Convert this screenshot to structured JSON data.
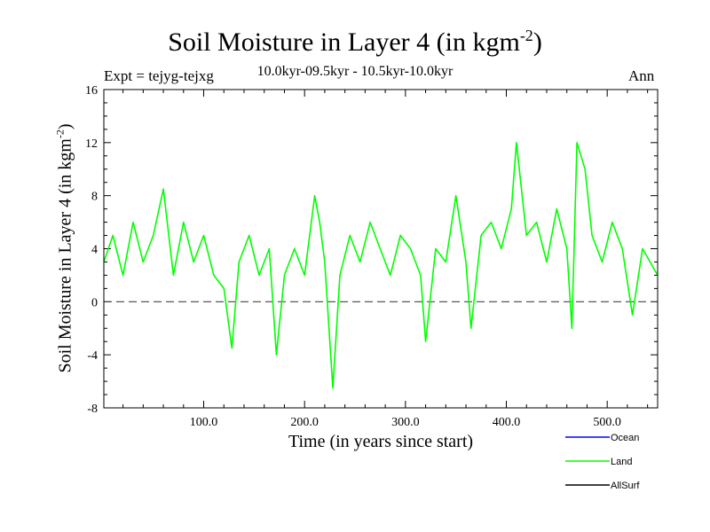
{
  "chart_data": {
    "type": "line",
    "title": "Soil Moisture in Layer 4 (in kgm",
    "title_sup": "-2",
    "title_end": ")",
    "subtitle": "10.0kyr-09.5kyr - 10.5kyr-10.0kyr",
    "expt_label": "Expt = tejyg-tejxg",
    "season": "Ann",
    "xlabel": "Time (in years since start)",
    "ylabel": "Soil Moisture in Layer 4 (in kgm",
    "ylabel_sup": "-2",
    "ylabel_end": ")",
    "xlim": [
      1,
      550
    ],
    "ylim": [
      -8,
      16
    ],
    "xticks": [
      100,
      200,
      300,
      400,
      500
    ],
    "xtick_labels": [
      "100.0",
      "200.0",
      "300.0",
      "400.0",
      "500.0"
    ],
    "yticks": [
      -8,
      -4,
      0,
      4,
      8,
      12,
      16
    ],
    "ytick_labels": [
      "-8",
      "-4",
      "0",
      "4",
      "8",
      "12",
      "16"
    ],
    "reference_line": 0,
    "legend": [
      {
        "name": "Ocean",
        "color": "#0000ff"
      },
      {
        "name": "Land",
        "color": "#00ff00"
      },
      {
        "name": "AllSurf",
        "color": "#000000"
      }
    ],
    "series": [
      {
        "name": "Land",
        "color": "#00ff00",
        "x": [
          1,
          10,
          20,
          30,
          40,
          50,
          60,
          70,
          80,
          90,
          100,
          110,
          120,
          128,
          135,
          145,
          155,
          165,
          172,
          180,
          190,
          200,
          210,
          215,
          220,
          228,
          235,
          245,
          255,
          265,
          275,
          285,
          295,
          305,
          315,
          320,
          330,
          340,
          350,
          360,
          365,
          375,
          385,
          395,
          405,
          410,
          420,
          430,
          440,
          450,
          460,
          465,
          470,
          478,
          485,
          495,
          505,
          515,
          525,
          535,
          550
        ],
        "values": [
          3,
          5,
          2,
          6,
          3,
          5,
          8.5,
          2,
          6,
          3,
          5,
          2,
          1,
          -3.5,
          3,
          5,
          2,
          4,
          -4,
          2,
          4,
          2,
          8,
          6,
          3,
          -6.5,
          2,
          5,
          3,
          6,
          4,
          2,
          5,
          4,
          2,
          -3,
          4,
          3,
          8,
          3,
          -2,
          5,
          6,
          4,
          7,
          12,
          5,
          6,
          3,
          7,
          4,
          -2,
          12,
          10,
          5,
          3,
          6,
          4,
          -1,
          4,
          2
        ]
      }
    ]
  }
}
